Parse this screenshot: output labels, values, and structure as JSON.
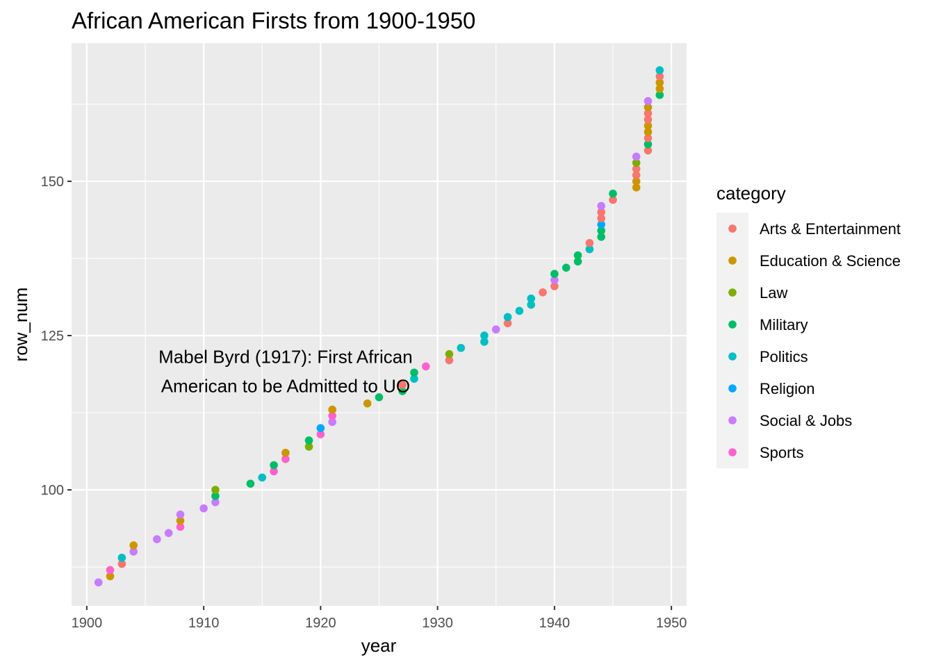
{
  "chart_data": {
    "type": "scatter",
    "title": "African American Firsts from 1900-1950",
    "xlabel": "year",
    "ylabel": "row_num",
    "xlim": [
      1898.7,
      1951.3
    ],
    "ylim": [
      81.2,
      172.4
    ],
    "x_ticks": [
      1900,
      1910,
      1920,
      1930,
      1940,
      1950
    ],
    "y_ticks": [
      100,
      125,
      150
    ],
    "grid": true,
    "legend": {
      "title": "category",
      "position": "right",
      "entries": [
        {
          "name": "Arts & Entertainment",
          "color": "#F8766D"
        },
        {
          "name": "Education & Science",
          "color": "#CD9600"
        },
        {
          "name": "Law",
          "color": "#7CAE00"
        },
        {
          "name": "Military",
          "color": "#00BE67"
        },
        {
          "name": "Politics",
          "color": "#00BFC4"
        },
        {
          "name": "Religion",
          "color": "#00A9FF"
        },
        {
          "name": "Social & Jobs",
          "color": "#C77CFF"
        },
        {
          "name": "Sports",
          "color": "#FF61CC"
        }
      ]
    },
    "annotation": {
      "lines": [
        "Mabel Byrd (1917): First African",
        "American to be Admitted to UO"
      ],
      "x": 1917,
      "y": 119.2
    },
    "points": [
      {
        "x": 1901,
        "y": 85,
        "c": "Social & Jobs"
      },
      {
        "x": 1902,
        "y": 86,
        "c": "Education & Science"
      },
      {
        "x": 1902,
        "y": 87,
        "c": "Sports"
      },
      {
        "x": 1903,
        "y": 88,
        "c": "Arts & Entertainment"
      },
      {
        "x": 1903,
        "y": 89,
        "c": "Politics"
      },
      {
        "x": 1904,
        "y": 90,
        "c": "Social & Jobs"
      },
      {
        "x": 1904,
        "y": 91,
        "c": "Education & Science"
      },
      {
        "x": 1906,
        "y": 92,
        "c": "Social & Jobs"
      },
      {
        "x": 1907,
        "y": 93,
        "c": "Social & Jobs"
      },
      {
        "x": 1908,
        "y": 94,
        "c": "Sports"
      },
      {
        "x": 1908,
        "y": 95,
        "c": "Education & Science"
      },
      {
        "x": 1908,
        "y": 96,
        "c": "Social & Jobs"
      },
      {
        "x": 1910,
        "y": 97,
        "c": "Social & Jobs"
      },
      {
        "x": 1911,
        "y": 98,
        "c": "Social & Jobs"
      },
      {
        "x": 1911,
        "y": 99,
        "c": "Military"
      },
      {
        "x": 1911,
        "y": 100,
        "c": "Law"
      },
      {
        "x": 1914,
        "y": 101,
        "c": "Military"
      },
      {
        "x": 1915,
        "y": 102,
        "c": "Politics"
      },
      {
        "x": 1916,
        "y": 103,
        "c": "Sports"
      },
      {
        "x": 1916,
        "y": 104,
        "c": "Military"
      },
      {
        "x": 1917,
        "y": 105,
        "c": "Sports"
      },
      {
        "x": 1917,
        "y": 106,
        "c": "Education & Science"
      },
      {
        "x": 1919,
        "y": 107,
        "c": "Law"
      },
      {
        "x": 1919,
        "y": 108,
        "c": "Military"
      },
      {
        "x": 1920,
        "y": 109,
        "c": "Sports"
      },
      {
        "x": 1920,
        "y": 110,
        "c": "Religion"
      },
      {
        "x": 1921,
        "y": 111,
        "c": "Social & Jobs"
      },
      {
        "x": 1921,
        "y": 112,
        "c": "Sports"
      },
      {
        "x": 1921,
        "y": 113,
        "c": "Education & Science"
      },
      {
        "x": 1924,
        "y": 114,
        "c": "Education & Science"
      },
      {
        "x": 1925,
        "y": 115,
        "c": "Military"
      },
      {
        "x": 1927,
        "y": 116,
        "c": "Military"
      },
      {
        "x": 1927,
        "y": 117,
        "c": "Arts & Entertainment"
      },
      {
        "x": 1928,
        "y": 118,
        "c": "Politics"
      },
      {
        "x": 1928,
        "y": 119,
        "c": "Military"
      },
      {
        "x": 1929,
        "y": 120,
        "c": "Sports"
      },
      {
        "x": 1931,
        "y": 121,
        "c": "Arts & Entertainment"
      },
      {
        "x": 1931,
        "y": 122,
        "c": "Law"
      },
      {
        "x": 1932,
        "y": 123,
        "c": "Politics"
      },
      {
        "x": 1934,
        "y": 124,
        "c": "Politics"
      },
      {
        "x": 1934,
        "y": 125,
        "c": "Politics"
      },
      {
        "x": 1935,
        "y": 126,
        "c": "Social & Jobs"
      },
      {
        "x": 1936,
        "y": 127,
        "c": "Arts & Entertainment"
      },
      {
        "x": 1936,
        "y": 128,
        "c": "Politics"
      },
      {
        "x": 1937,
        "y": 129,
        "c": "Politics"
      },
      {
        "x": 1938,
        "y": 130,
        "c": "Politics"
      },
      {
        "x": 1938,
        "y": 131,
        "c": "Politics"
      },
      {
        "x": 1939,
        "y": 132,
        "c": "Arts & Entertainment"
      },
      {
        "x": 1940,
        "y": 133,
        "c": "Arts & Entertainment"
      },
      {
        "x": 1940,
        "y": 134,
        "c": "Social & Jobs"
      },
      {
        "x": 1940,
        "y": 135,
        "c": "Military"
      },
      {
        "x": 1941,
        "y": 136,
        "c": "Military"
      },
      {
        "x": 1942,
        "y": 137,
        "c": "Military"
      },
      {
        "x": 1942,
        "y": 138,
        "c": "Military"
      },
      {
        "x": 1943,
        "y": 139,
        "c": "Politics"
      },
      {
        "x": 1943,
        "y": 140,
        "c": "Arts & Entertainment"
      },
      {
        "x": 1944,
        "y": 141,
        "c": "Military"
      },
      {
        "x": 1944,
        "y": 142,
        "c": "Military"
      },
      {
        "x": 1944,
        "y": 143,
        "c": "Religion"
      },
      {
        "x": 1944,
        "y": 144,
        "c": "Arts & Entertainment"
      },
      {
        "x": 1944,
        "y": 145,
        "c": "Arts & Entertainment"
      },
      {
        "x": 1944,
        "y": 146,
        "c": "Social & Jobs"
      },
      {
        "x": 1945,
        "y": 147,
        "c": "Arts & Entertainment"
      },
      {
        "x": 1945,
        "y": 148,
        "c": "Military"
      },
      {
        "x": 1947,
        "y": 149,
        "c": "Education & Science"
      },
      {
        "x": 1947,
        "y": 150,
        "c": "Education & Science"
      },
      {
        "x": 1947,
        "y": 151,
        "c": "Arts & Entertainment"
      },
      {
        "x": 1947,
        "y": 152,
        "c": "Arts & Entertainment"
      },
      {
        "x": 1947,
        "y": 153,
        "c": "Law"
      },
      {
        "x": 1947,
        "y": 154,
        "c": "Social & Jobs"
      },
      {
        "x": 1948,
        "y": 155,
        "c": "Arts & Entertainment"
      },
      {
        "x": 1948,
        "y": 156,
        "c": "Military"
      },
      {
        "x": 1948,
        "y": 157,
        "c": "Arts & Entertainment"
      },
      {
        "x": 1948,
        "y": 158,
        "c": "Education & Science"
      },
      {
        "x": 1948,
        "y": 159,
        "c": "Education & Science"
      },
      {
        "x": 1948,
        "y": 160,
        "c": "Arts & Entertainment"
      },
      {
        "x": 1948,
        "y": 161,
        "c": "Arts & Entertainment"
      },
      {
        "x": 1948,
        "y": 162,
        "c": "Education & Science"
      },
      {
        "x": 1948,
        "y": 163,
        "c": "Social & Jobs"
      },
      {
        "x": 1949,
        "y": 164,
        "c": "Military"
      },
      {
        "x": 1949,
        "y": 165,
        "c": "Education & Science"
      },
      {
        "x": 1949,
        "y": 166,
        "c": "Education & Science"
      },
      {
        "x": 1949,
        "y": 167,
        "c": "Arts & Entertainment"
      },
      {
        "x": 1949,
        "y": 168,
        "c": "Politics"
      }
    ]
  }
}
